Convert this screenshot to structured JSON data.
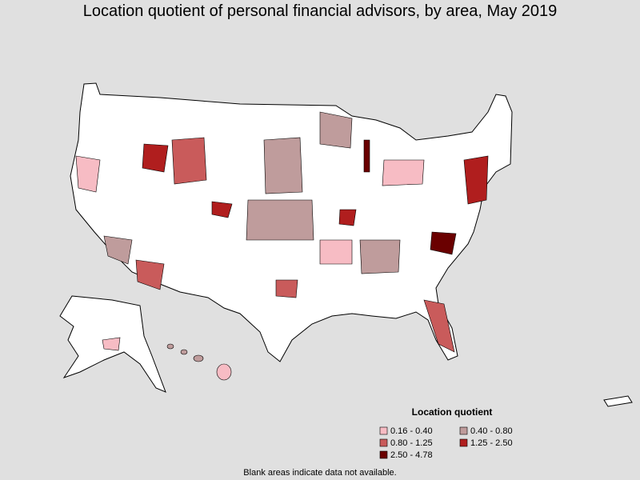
{
  "title": "Location quotient of personal financial advisors, by area, May 2019",
  "legend": {
    "title": "Location quotient",
    "items": [
      {
        "label": "0.16 - 0.40",
        "color": "#f7bcc4"
      },
      {
        "label": "0.40 - 0.80",
        "color": "#bf9c9c"
      },
      {
        "label": "0.80 - 1.25",
        "color": "#c95b5b"
      },
      {
        "label": "1.25 - 2.50",
        "color": "#b01e1e"
      },
      {
        "label": "2.50 - 4.78",
        "color": "#6a0000"
      }
    ]
  },
  "note": "Blank areas indicate data not available."
}
